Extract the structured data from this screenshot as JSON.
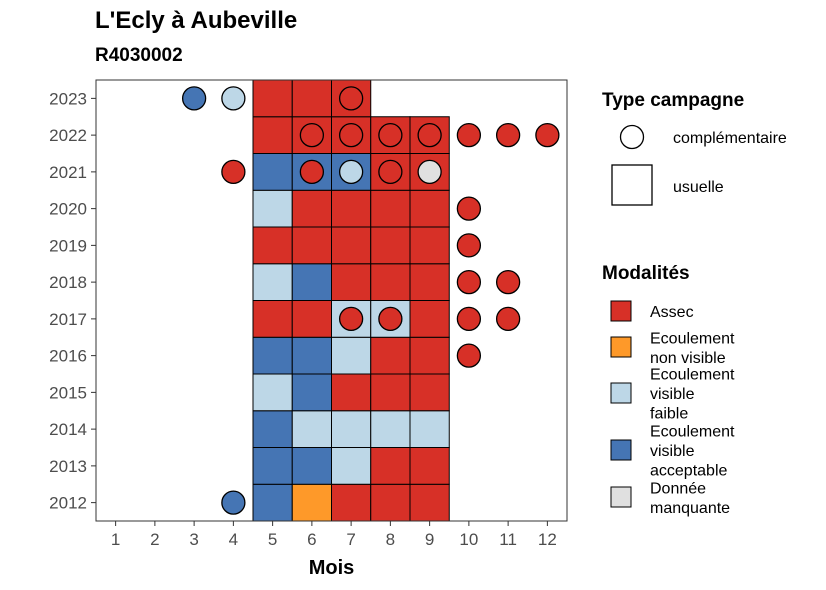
{
  "chart_data": {
    "type": "heatmap",
    "title": "L'Ecly à Aubeville",
    "subtitle": "R4030002",
    "xlabel": "Mois",
    "ylabel": "",
    "x_ticks": [
      "1",
      "2",
      "3",
      "4",
      "5",
      "6",
      "7",
      "8",
      "9",
      "10",
      "11",
      "12"
    ],
    "y_ticks": [
      "2012",
      "2013",
      "2014",
      "2015",
      "2016",
      "2017",
      "2018",
      "2019",
      "2020",
      "2021",
      "2022",
      "2023"
    ],
    "xlim": [
      0.5,
      12.5
    ],
    "ylim": [
      2011.5,
      2023.5
    ],
    "grid": false,
    "legend_position": "right",
    "modalites": [
      {
        "key": "assec",
        "label": "Assec",
        "color": "#d73027"
      },
      {
        "key": "nonvisible",
        "label": "Ecoulement non visible",
        "color": "#fe9929"
      },
      {
        "key": "faible",
        "label": "Ecoulement visible faible",
        "color": "#bdd7e7"
      },
      {
        "key": "acceptable",
        "label": "Ecoulement visible acceptable",
        "color": "#4575b4"
      },
      {
        "key": "manquante",
        "label": "Donnée manquante",
        "color": "#e0e0e0"
      }
    ],
    "type_campagne": [
      {
        "key": "complementaire",
        "label": "complémentaire",
        "shape": "circle"
      },
      {
        "key": "usuelle",
        "label": "usuelle",
        "shape": "square"
      }
    ],
    "legend_titles": {
      "campagne": "Type campagne",
      "modalites": "Modalités"
    },
    "usuelle": [
      {
        "year": 2012,
        "month": 5,
        "mod": "acceptable"
      },
      {
        "year": 2012,
        "month": 6,
        "mod": "nonvisible"
      },
      {
        "year": 2012,
        "month": 7,
        "mod": "assec"
      },
      {
        "year": 2012,
        "month": 8,
        "mod": "assec"
      },
      {
        "year": 2012,
        "month": 9,
        "mod": "assec"
      },
      {
        "year": 2013,
        "month": 5,
        "mod": "acceptable"
      },
      {
        "year": 2013,
        "month": 6,
        "mod": "acceptable"
      },
      {
        "year": 2013,
        "month": 7,
        "mod": "faible"
      },
      {
        "year": 2013,
        "month": 8,
        "mod": "assec"
      },
      {
        "year": 2013,
        "month": 9,
        "mod": "assec"
      },
      {
        "year": 2014,
        "month": 5,
        "mod": "acceptable"
      },
      {
        "year": 2014,
        "month": 6,
        "mod": "faible"
      },
      {
        "year": 2014,
        "month": 7,
        "mod": "faible"
      },
      {
        "year": 2014,
        "month": 8,
        "mod": "faible"
      },
      {
        "year": 2014,
        "month": 9,
        "mod": "faible"
      },
      {
        "year": 2015,
        "month": 5,
        "mod": "faible"
      },
      {
        "year": 2015,
        "month": 6,
        "mod": "acceptable"
      },
      {
        "year": 2015,
        "month": 7,
        "mod": "assec"
      },
      {
        "year": 2015,
        "month": 8,
        "mod": "assec"
      },
      {
        "year": 2015,
        "month": 9,
        "mod": "assec"
      },
      {
        "year": 2016,
        "month": 5,
        "mod": "acceptable"
      },
      {
        "year": 2016,
        "month": 6,
        "mod": "acceptable"
      },
      {
        "year": 2016,
        "month": 7,
        "mod": "faible"
      },
      {
        "year": 2016,
        "month": 8,
        "mod": "assec"
      },
      {
        "year": 2016,
        "month": 9,
        "mod": "assec"
      },
      {
        "year": 2017,
        "month": 5,
        "mod": "assec"
      },
      {
        "year": 2017,
        "month": 6,
        "mod": "assec"
      },
      {
        "year": 2017,
        "month": 7,
        "mod": "faible"
      },
      {
        "year": 2017,
        "month": 8,
        "mod": "faible"
      },
      {
        "year": 2017,
        "month": 9,
        "mod": "assec"
      },
      {
        "year": 2018,
        "month": 5,
        "mod": "faible"
      },
      {
        "year": 2018,
        "month": 6,
        "mod": "acceptable"
      },
      {
        "year": 2018,
        "month": 7,
        "mod": "assec"
      },
      {
        "year": 2018,
        "month": 8,
        "mod": "assec"
      },
      {
        "year": 2018,
        "month": 9,
        "mod": "assec"
      },
      {
        "year": 2019,
        "month": 5,
        "mod": "assec"
      },
      {
        "year": 2019,
        "month": 6,
        "mod": "assec"
      },
      {
        "year": 2019,
        "month": 7,
        "mod": "assec"
      },
      {
        "year": 2019,
        "month": 8,
        "mod": "assec"
      },
      {
        "year": 2019,
        "month": 9,
        "mod": "assec"
      },
      {
        "year": 2020,
        "month": 5,
        "mod": "faible"
      },
      {
        "year": 2020,
        "month": 6,
        "mod": "assec"
      },
      {
        "year": 2020,
        "month": 7,
        "mod": "assec"
      },
      {
        "year": 2020,
        "month": 8,
        "mod": "assec"
      },
      {
        "year": 2020,
        "month": 9,
        "mod": "assec"
      },
      {
        "year": 2021,
        "month": 5,
        "mod": "acceptable"
      },
      {
        "year": 2021,
        "month": 6,
        "mod": "acceptable"
      },
      {
        "year": 2021,
        "month": 7,
        "mod": "acceptable"
      },
      {
        "year": 2021,
        "month": 8,
        "mod": "assec"
      },
      {
        "year": 2021,
        "month": 9,
        "mod": "assec"
      },
      {
        "year": 2022,
        "month": 5,
        "mod": "assec"
      },
      {
        "year": 2022,
        "month": 6,
        "mod": "assec"
      },
      {
        "year": 2022,
        "month": 7,
        "mod": "assec"
      },
      {
        "year": 2022,
        "month": 8,
        "mod": "assec"
      },
      {
        "year": 2022,
        "month": 9,
        "mod": "assec"
      },
      {
        "year": 2023,
        "month": 5,
        "mod": "assec"
      },
      {
        "year": 2023,
        "month": 6,
        "mod": "assec"
      },
      {
        "year": 2023,
        "month": 7,
        "mod": "assec"
      }
    ],
    "complementaire": [
      {
        "year": 2023,
        "month": 3,
        "mod": "acceptable"
      },
      {
        "year": 2023,
        "month": 4,
        "mod": "faible"
      },
      {
        "year": 2023,
        "month": 7,
        "mod": "assec"
      },
      {
        "year": 2022,
        "month": 6,
        "mod": "assec"
      },
      {
        "year": 2022,
        "month": 7,
        "mod": "assec"
      },
      {
        "year": 2022,
        "month": 8,
        "mod": "assec"
      },
      {
        "year": 2022,
        "month": 9,
        "mod": "assec"
      },
      {
        "year": 2022,
        "month": 10,
        "mod": "assec"
      },
      {
        "year": 2022,
        "month": 11,
        "mod": "assec"
      },
      {
        "year": 2022,
        "month": 12,
        "mod": "assec"
      },
      {
        "year": 2021,
        "month": 4,
        "mod": "assec"
      },
      {
        "year": 2021,
        "month": 6,
        "mod": "assec"
      },
      {
        "year": 2021,
        "month": 7,
        "mod": "faible"
      },
      {
        "year": 2021,
        "month": 8,
        "mod": "assec"
      },
      {
        "year": 2021,
        "month": 9,
        "mod": "manquante"
      },
      {
        "year": 2020,
        "month": 10,
        "mod": "assec"
      },
      {
        "year": 2019,
        "month": 10,
        "mod": "assec"
      },
      {
        "year": 2018,
        "month": 10,
        "mod": "assec"
      },
      {
        "year": 2018,
        "month": 11,
        "mod": "assec"
      },
      {
        "year": 2017,
        "month": 7,
        "mod": "assec"
      },
      {
        "year": 2017,
        "month": 8,
        "mod": "assec"
      },
      {
        "year": 2017,
        "month": 10,
        "mod": "assec"
      },
      {
        "year": 2017,
        "month": 11,
        "mod": "assec"
      },
      {
        "year": 2016,
        "month": 10,
        "mod": "assec"
      },
      {
        "year": 2012,
        "month": 4,
        "mod": "acceptable"
      }
    ]
  }
}
